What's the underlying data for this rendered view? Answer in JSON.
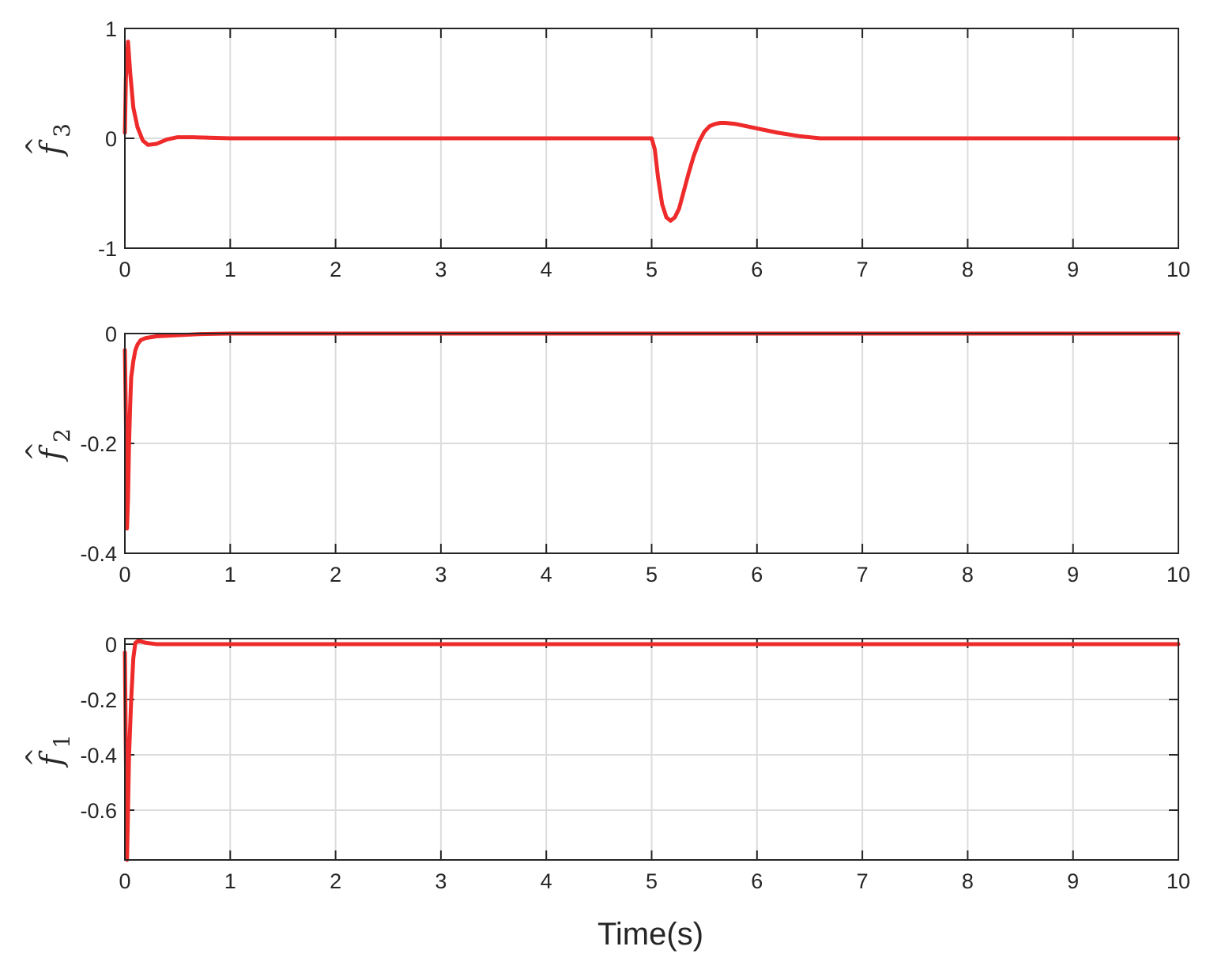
{
  "chart_data": [
    {
      "type": "line",
      "ylabel": {
        "symbol": "f",
        "subscript": "3",
        "hat": "^"
      },
      "xlim": [
        0,
        10
      ],
      "ylim": [
        -1,
        1
      ],
      "xticks": [
        "0",
        "1",
        "2",
        "3",
        "4",
        "5",
        "6",
        "7",
        "8",
        "9",
        "10"
      ],
      "yticks": [
        {
          "value": -1,
          "label": "-1"
        },
        {
          "value": 0,
          "label": "0"
        },
        {
          "value": 1,
          "label": "1"
        }
      ],
      "grid": true,
      "series": [
        {
          "color": "#EE2A2A",
          "x": [
            0,
            0.01,
            0.03,
            0.05,
            0.08,
            0.12,
            0.17,
            0.22,
            0.3,
            0.4,
            0.5,
            0.65,
            0.8,
            1.0,
            1.5,
            5.0,
            5.03,
            5.06,
            5.1,
            5.14,
            5.18,
            5.22,
            5.26,
            5.3,
            5.35,
            5.4,
            5.45,
            5.5,
            5.55,
            5.6,
            5.65,
            5.7,
            5.8,
            5.9,
            6.0,
            6.2,
            6.4,
            6.6,
            7.0,
            10.0
          ],
          "y": [
            0.05,
            0.55,
            0.88,
            0.6,
            0.28,
            0.1,
            -0.02,
            -0.06,
            -0.05,
            -0.01,
            0.01,
            0.01,
            0.005,
            0.0,
            0.0,
            0.0,
            -0.1,
            -0.35,
            -0.6,
            -0.72,
            -0.75,
            -0.72,
            -0.64,
            -0.5,
            -0.32,
            -0.16,
            -0.03,
            0.06,
            0.11,
            0.13,
            0.14,
            0.14,
            0.13,
            0.11,
            0.09,
            0.05,
            0.02,
            0.0,
            0.0,
            0.0
          ]
        }
      ]
    },
    {
      "type": "line",
      "ylabel": {
        "symbol": "f",
        "subscript": "2",
        "hat": "^"
      },
      "xlim": [
        0,
        10
      ],
      "ylim": [
        -0.4,
        0
      ],
      "xticks": [
        "0",
        "1",
        "2",
        "3",
        "4",
        "5",
        "6",
        "7",
        "8",
        "9",
        "10"
      ],
      "yticks": [
        {
          "value": -0.4,
          "label": "-0.4"
        },
        {
          "value": -0.2,
          "label": "-0.2"
        },
        {
          "value": 0,
          "label": "0"
        }
      ],
      "grid": true,
      "series": [
        {
          "color": "#EE2A2A",
          "x": [
            0,
            0.01,
            0.02,
            0.03,
            0.04,
            0.05,
            0.06,
            0.08,
            0.1,
            0.12,
            0.15,
            0.2,
            0.3,
            0.5,
            0.7,
            1.0,
            10.0
          ],
          "y": [
            -0.03,
            -0.15,
            -0.355,
            -0.3,
            -0.2,
            -0.13,
            -0.08,
            -0.05,
            -0.03,
            -0.02,
            -0.012,
            -0.008,
            -0.005,
            -0.003,
            -0.001,
            0.0,
            0.0
          ]
        }
      ]
    },
    {
      "type": "line",
      "ylabel": {
        "symbol": "f",
        "subscript": "1",
        "hat": "^"
      },
      "xlim": [
        0,
        10
      ],
      "ylim": [
        -0.78,
        0.02
      ],
      "xticks": [
        "0",
        "1",
        "2",
        "3",
        "4",
        "5",
        "6",
        "7",
        "8",
        "9",
        "10"
      ],
      "yticks": [
        {
          "value": -0.6,
          "label": "-0.6"
        },
        {
          "value": -0.4,
          "label": "-0.4"
        },
        {
          "value": -0.2,
          "label": "-0.2"
        },
        {
          "value": 0,
          "label": "0"
        }
      ],
      "grid": true,
      "series": [
        {
          "color": "#EE2A2A",
          "x": [
            0,
            0.01,
            0.02,
            0.03,
            0.04,
            0.06,
            0.08,
            0.1,
            0.12,
            0.15,
            0.2,
            0.3,
            10.0
          ],
          "y": [
            -0.03,
            -0.4,
            -0.78,
            -0.6,
            -0.4,
            -0.2,
            -0.05,
            0.005,
            0.01,
            0.01,
            0.005,
            0.0,
            0.0
          ]
        }
      ]
    }
  ],
  "xlabel": "Time(s)"
}
